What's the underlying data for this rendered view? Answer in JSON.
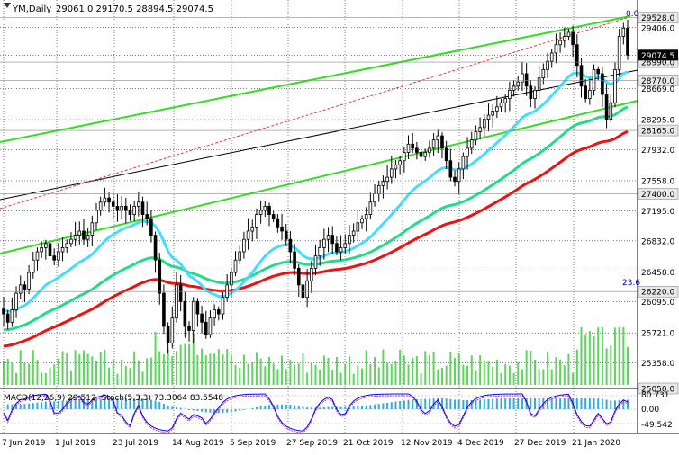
{
  "header": {
    "symbol_label": "YM,Daily",
    "ohlc_text": "29061.0 29170.5 28894.5 29074.5"
  },
  "indicator_labels": {
    "macd": "MACD(12,26,9) 29.512",
    "stoch": "Stoch(5,3,3) 73.3064 83.5548"
  },
  "fib_labels": {
    "top": "0.0",
    "mid": "23.6"
  },
  "colors": {
    "background": "#ffffff",
    "candle": "#000000",
    "ema50": "#44ddff",
    "ema144": "#22dd88",
    "ema200": "#ee1111",
    "channel_green": "#33dd22",
    "channel_black": "#000000",
    "fib_red_dotted": "#ee3333",
    "volume": "#33cc33",
    "macd_hist": "#33aadd",
    "stoch_main": "#0000ff",
    "stoch_signal": "#cc3399",
    "grid": "#000000",
    "price_box": "#000000"
  },
  "chart_data": {
    "type": "candlestick",
    "symbol": "YM",
    "timeframe": "Daily",
    "ohlc_current": {
      "open": 29061.0,
      "high": 29170.5,
      "low": 28894.5,
      "close": 29074.5
    },
    "y_axis": {
      "min": 25050,
      "max": 29740,
      "ticks": [
        29406.0,
        29074.5,
        28669.0,
        28295.0,
        27932.0,
        27558.0,
        27195.0,
        26832.0,
        26458.0,
        26095.0,
        25721.0,
        25358.0
      ]
    },
    "x_axis_labels": [
      "7 Jun 2019",
      "1 Jul 2019",
      "23 Jul 2019",
      "14 Aug 2019",
      "5 Sep 2019",
      "27 Sep 2019",
      "21 Oct 2019",
      "12 Nov 2019",
      "4 Dec 2019",
      "27 Dec 2019",
      "21 Jan 2020"
    ],
    "horizontal_levels": [
      {
        "label": "29528.0",
        "value": 29528.0,
        "style": "box"
      },
      {
        "label": "28990.0",
        "value": 28990.0,
        "style": "box"
      },
      {
        "label": "28770.0",
        "value": 28770.0,
        "style": "box"
      },
      {
        "label": "28165.0",
        "value": 28165.0,
        "style": "box"
      },
      {
        "label": "27400.0",
        "value": 27400.0,
        "style": "box"
      },
      {
        "label": "26220.0",
        "value": 26220.0,
        "style": "box"
      },
      {
        "label": "25050.0",
        "value": 25050.0,
        "style": "box"
      }
    ],
    "closes": [
      25950,
      25850,
      26000,
      26200,
      26300,
      26250,
      26450,
      26600,
      26700,
      26750,
      26800,
      26650,
      26600,
      26700,
      26750,
      26800,
      26850,
      26900,
      26950,
      26850,
      26900,
      27050,
      27200,
      27300,
      27350,
      27300,
      27250,
      27200,
      27250,
      27200,
      27150,
      27250,
      27300,
      27150,
      27100,
      26900,
      26600,
      26200,
      25800,
      25600,
      25900,
      26300,
      26100,
      25800,
      25750,
      26100,
      25950,
      25850,
      25700,
      25900,
      26000,
      25950,
      26150,
      26300,
      26450,
      26600,
      26700,
      26850,
      26950,
      27000,
      27150,
      27200,
      27250,
      27150,
      27100,
      27000,
      26950,
      26850,
      26700,
      26500,
      26300,
      26150,
      26350,
      26500,
      26650,
      26750,
      26850,
      26900,
      26800,
      26700,
      26750,
      26800,
      26900,
      26950,
      27050,
      27100,
      27150,
      27300,
      27400,
      27500,
      27550,
      27600,
      27700,
      27750,
      27800,
      27900,
      28000,
      27950,
      27900,
      27850,
      27900,
      27950,
      28050,
      28100,
      27950,
      27800,
      27600,
      27550,
      27700,
      27850,
      27950,
      28050,
      28150,
      28200,
      28300,
      28350,
      28400,
      28450,
      28500,
      28550,
      28650,
      28700,
      28750,
      28850,
      28700,
      28550,
      28650,
      28800,
      28900,
      29000,
      29100,
      29200,
      29250,
      29300,
      29350,
      29200,
      28950,
      28700,
      28550,
      28650,
      28900,
      28850,
      28600,
      28300,
      28500,
      28900,
      29300,
      29400,
      29074.5
    ],
    "series": [
      {
        "name": "EMA 50"
      },
      {
        "name": "EMA 144"
      },
      {
        "name": "EMA 200"
      }
    ],
    "volume_levels": "relative",
    "sub_indicators": {
      "macd_value": 29.512,
      "stoch_main": 73.3064,
      "stoch_signal": 83.5548,
      "right_axis": [
        "80.731",
        "0.00",
        "-49.542"
      ]
    }
  }
}
